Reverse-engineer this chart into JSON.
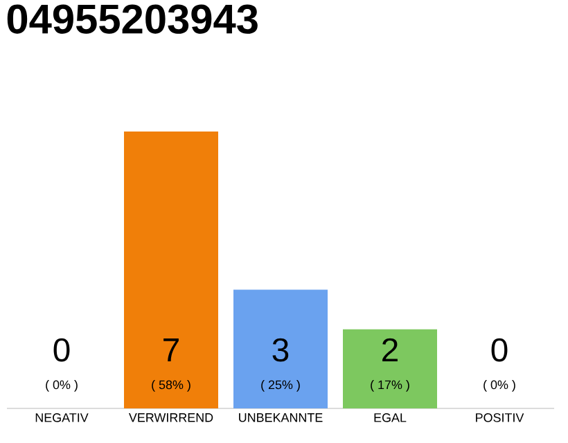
{
  "chart_data": {
    "type": "bar",
    "title": "04955203943",
    "categories": [
      "NEGATIV",
      "VERWIRREND",
      "UNBEKANNTE",
      "EGAL",
      "POSITIV"
    ],
    "values": [
      0,
      7,
      3,
      2,
      0
    ],
    "colors": [
      "#aaaaaa",
      "#f07f09",
      "#6aa2ef",
      "#7dc85f",
      "#aaaaaa"
    ],
    "annotations": [
      "( 0% )",
      "( 58% )",
      "( 25% )",
      "( 17% )",
      "( 0% )"
    ],
    "data_labels": true
  }
}
